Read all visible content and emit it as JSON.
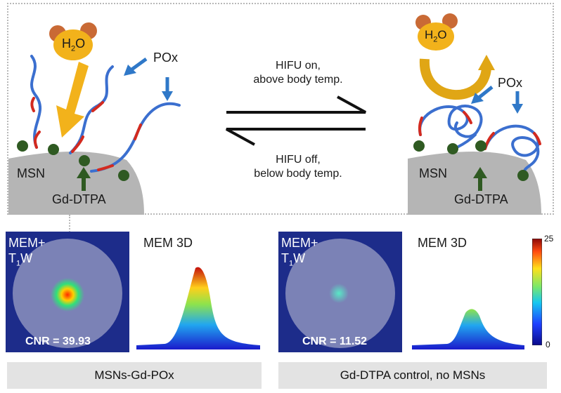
{
  "top": {
    "water": "H",
    "water_sub_2": "2",
    "water_o": "O",
    "left": {
      "pox": "POx",
      "msn": "MSN",
      "gd": "Gd-DTPA"
    },
    "right": {
      "pox": "POx",
      "msn": "MSN",
      "gd": "Gd-DTPA"
    },
    "arrow_top": {
      "line1": "HIFU on,",
      "line2": "above body temp."
    },
    "arrow_bottom": {
      "line1": "HIFU off,",
      "line2": "below body temp."
    }
  },
  "panels": [
    {
      "mem_label": "MEM+",
      "t1w": "T",
      "t1w_sub": "1",
      "t1w_rest": "W",
      "title3d": "MEM 3D",
      "cnr": "CNR = 39.93",
      "caption": "MSNs-Gd-POx"
    },
    {
      "mem_label": "MEM+",
      "t1w": "T",
      "t1w_sub": "1",
      "t1w_rest": "W",
      "title3d": "MEM 3D",
      "cnr": "CNR = 11.52",
      "caption": "Gd-DTPA control, no MSNs"
    }
  ],
  "colorbar": {
    "max": "25",
    "min": "0"
  },
  "colors": {
    "polymer": "#3b6fcf",
    "polymer_red": "#d32a1f",
    "gd_dot": "#2f5a22",
    "msn": "#b5b5b5",
    "water": "#f2b21b",
    "arrow_blue": "#2f78c8",
    "border_dotted": "#b8b8b8"
  }
}
